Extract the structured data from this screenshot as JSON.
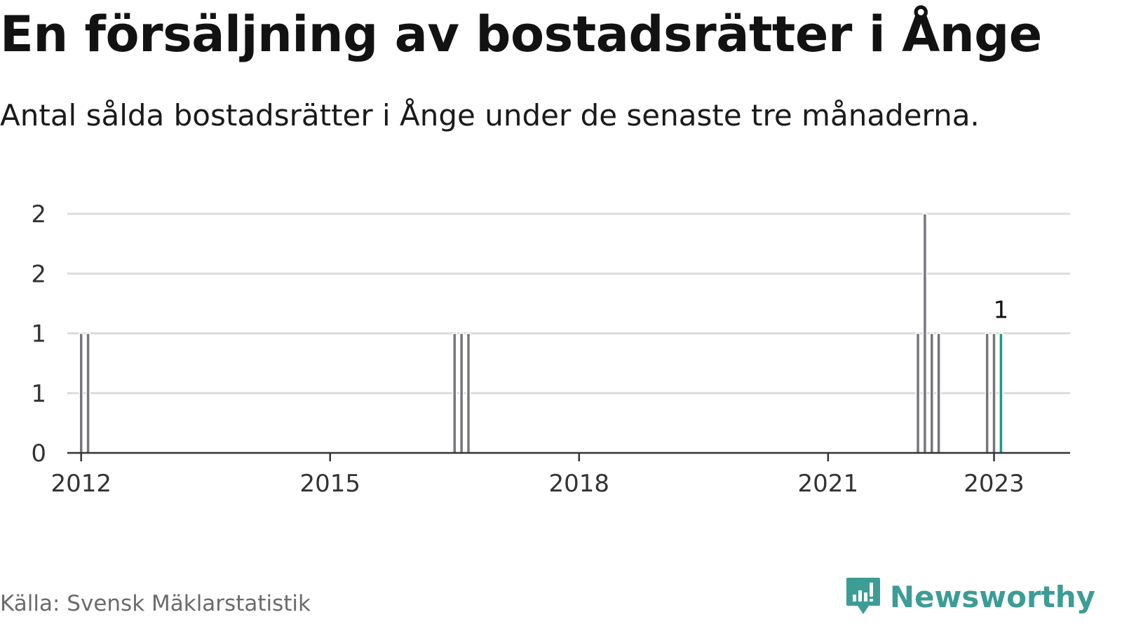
{
  "header": {
    "title": "En försäljning av bostadsrätter i Ånge",
    "subtitle": "Antal sålda bostadsrätter i Ånge under de senaste tre månaderna."
  },
  "footer": {
    "source": "Källa: Svensk Mäklarstatistik",
    "brand": "Newsworthy"
  },
  "colors": {
    "bar": "#76767b",
    "highlight": "#1a9b8c",
    "grid": "#dcdcdc",
    "axis": "#333333",
    "brand": "#3c9c96"
  },
  "icons": {
    "brand_logo": "newsworthy-logo-icon"
  },
  "chart_data": {
    "type": "bar",
    "title": "En försäljning av bostadsrätter i Ånge",
    "subtitle": "Antal sålda bostadsrätter i Ånge under de senaste tre månaderna.",
    "xlabel": "",
    "ylabel": "",
    "ylim": [
      0,
      2
    ],
    "xlim": [
      "2011-11",
      "2023-12"
    ],
    "y_ticks": [
      0,
      0.5,
      1,
      1.5,
      2
    ],
    "y_tick_labels": [
      "0",
      "1",
      "1",
      "2",
      "2"
    ],
    "x_ticks": [
      "2012-01",
      "2015-01",
      "2018-01",
      "2021-01",
      "2023-01"
    ],
    "x_tick_labels": [
      "2012",
      "2015",
      "2018",
      "2021",
      "2023"
    ],
    "grid": true,
    "legend": "none",
    "series": [
      {
        "x": [
          "2012-01",
          "2012-02",
          "2016-07",
          "2016-08",
          "2016-09",
          "2022-02",
          "2022-03",
          "2022-04",
          "2022-05",
          "2022-12",
          "2023-01",
          "2023-02"
        ],
        "values": [
          1,
          1,
          1,
          1,
          1,
          1,
          2,
          1,
          1,
          1,
          1,
          1
        ]
      }
    ],
    "highlight": {
      "x": "2023-02",
      "value": 1,
      "label": "1"
    }
  }
}
